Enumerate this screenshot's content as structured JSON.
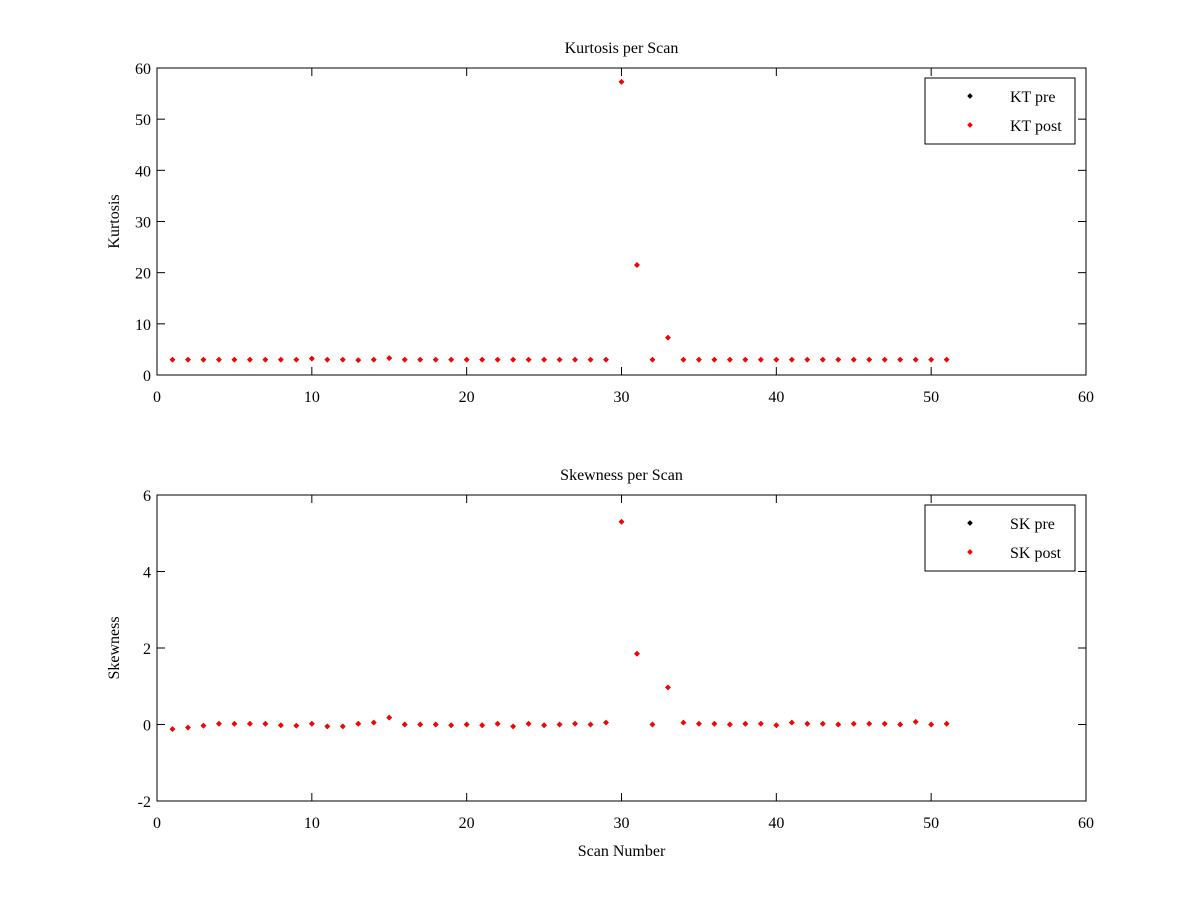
{
  "chart_data": [
    {
      "type": "scatter",
      "title": "Kurtosis per Scan",
      "xlabel": "",
      "ylabel": "Kurtosis",
      "xlim": [
        0,
        60
      ],
      "ylim": [
        0,
        60
      ],
      "xticks": [
        0,
        10,
        20,
        30,
        40,
        50,
        60
      ],
      "yticks": [
        0,
        10,
        20,
        30,
        40,
        50,
        60
      ],
      "grid": false,
      "legend_position": "top-right",
      "x": [
        1,
        2,
        3,
        4,
        5,
        6,
        7,
        8,
        9,
        10,
        11,
        12,
        13,
        14,
        15,
        16,
        17,
        18,
        19,
        20,
        21,
        22,
        23,
        24,
        25,
        26,
        27,
        28,
        29,
        30,
        31,
        32,
        33,
        34,
        35,
        36,
        37,
        38,
        39,
        40,
        41,
        42,
        43,
        44,
        45,
        46,
        47,
        48,
        49,
        50,
        51
      ],
      "series": [
        {
          "name": "KT pre",
          "color": "#000000",
          "values": [
            3.0,
            3.0,
            3.0,
            3.0,
            3.0,
            3.0,
            3.0,
            3.0,
            3.0,
            3.2,
            3.0,
            3.0,
            2.9,
            3.0,
            3.3,
            3.0,
            3.0,
            3.0,
            3.0,
            3.0,
            3.0,
            3.0,
            3.0,
            3.0,
            3.0,
            3.0,
            3.0,
            3.0,
            3.0,
            57.3,
            21.5,
            3.0,
            7.3,
            3.0,
            3.0,
            3.0,
            3.0,
            3.0,
            3.0,
            3.0,
            3.0,
            3.0,
            3.0,
            3.0,
            3.0,
            3.0,
            3.0,
            3.0,
            3.0,
            3.0,
            3.0
          ]
        },
        {
          "name": "KT post",
          "color": "#ff0000",
          "values": [
            3.0,
            3.0,
            3.0,
            3.0,
            3.0,
            3.0,
            3.0,
            3.0,
            3.0,
            3.2,
            3.0,
            3.0,
            2.9,
            3.0,
            3.3,
            3.0,
            3.0,
            3.0,
            3.0,
            3.0,
            3.0,
            3.0,
            3.0,
            3.0,
            3.0,
            3.0,
            3.0,
            3.0,
            3.0,
            57.3,
            21.5,
            3.0,
            7.3,
            3.0,
            3.0,
            3.0,
            3.0,
            3.0,
            3.0,
            3.0,
            3.0,
            3.0,
            3.0,
            3.0,
            3.0,
            3.0,
            3.0,
            3.0,
            3.0,
            3.0,
            3.0
          ]
        }
      ]
    },
    {
      "type": "scatter",
      "title": "Skewness per Scan",
      "xlabel": "Scan Number",
      "ylabel": "Skewness",
      "xlim": [
        0,
        60
      ],
      "ylim": [
        -2,
        6
      ],
      "xticks": [
        0,
        10,
        20,
        30,
        40,
        50,
        60
      ],
      "yticks": [
        -2,
        0,
        2,
        4,
        6
      ],
      "grid": false,
      "legend_position": "top-right",
      "x": [
        1,
        2,
        3,
        4,
        5,
        6,
        7,
        8,
        9,
        10,
        11,
        12,
        13,
        14,
        15,
        16,
        17,
        18,
        19,
        20,
        21,
        22,
        23,
        24,
        25,
        26,
        27,
        28,
        29,
        30,
        31,
        32,
        33,
        34,
        35,
        36,
        37,
        38,
        39,
        40,
        41,
        42,
        43,
        44,
        45,
        46,
        47,
        48,
        49,
        50,
        51
      ],
      "series": [
        {
          "name": "SK pre",
          "color": "#000000",
          "values": [
            -0.12,
            -0.08,
            -0.03,
            0.02,
            0.02,
            0.02,
            0.02,
            -0.02,
            -0.03,
            0.02,
            -0.05,
            -0.05,
            0.02,
            0.05,
            0.18,
            0.0,
            0.0,
            0.0,
            -0.02,
            0.0,
            -0.02,
            0.02,
            -0.05,
            0.02,
            -0.02,
            0.0,
            0.02,
            0.0,
            0.05,
            5.3,
            1.85,
            0.0,
            0.97,
            0.05,
            0.02,
            0.02,
            0.0,
            0.02,
            0.02,
            -0.02,
            0.05,
            0.02,
            0.02,
            0.0,
            0.02,
            0.02,
            0.02,
            0.0,
            0.07,
            0.0,
            0.02
          ]
        },
        {
          "name": "SK post",
          "color": "#ff0000",
          "values": [
            -0.12,
            -0.08,
            -0.03,
            0.02,
            0.02,
            0.02,
            0.02,
            -0.02,
            -0.03,
            0.02,
            -0.05,
            -0.05,
            0.02,
            0.05,
            0.18,
            0.0,
            0.0,
            0.0,
            -0.02,
            0.0,
            -0.02,
            0.02,
            -0.05,
            0.02,
            -0.02,
            0.0,
            0.02,
            0.0,
            0.05,
            5.3,
            1.85,
            0.0,
            0.97,
            0.05,
            0.02,
            0.02,
            0.0,
            0.02,
            0.02,
            -0.02,
            0.05,
            0.02,
            0.02,
            0.0,
            0.02,
            0.02,
            0.02,
            0.0,
            0.07,
            0.0,
            0.02
          ]
        }
      ]
    }
  ]
}
